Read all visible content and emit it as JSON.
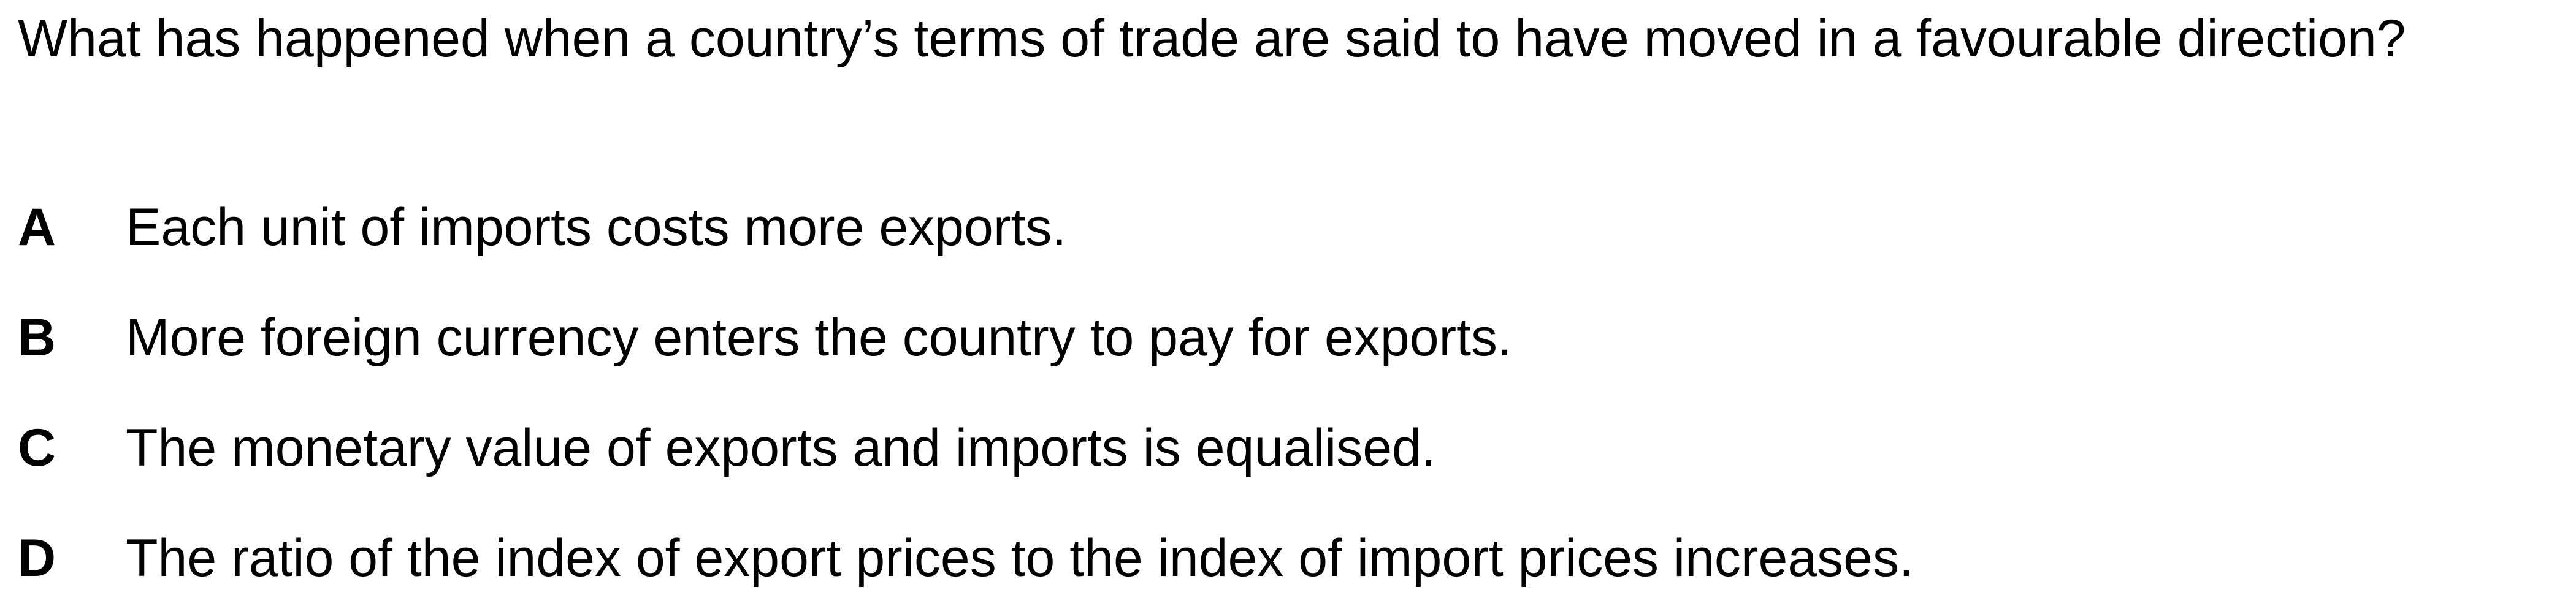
{
  "question": {
    "text": "What has happened when a country’s terms of trade are said to have moved in a favourable direction?"
  },
  "options": [
    {
      "letter": "A",
      "text": "Each unit of imports costs more exports."
    },
    {
      "letter": "B",
      "text": "More foreign currency enters the country to pay for exports."
    },
    {
      "letter": "C",
      "text": "The monetary value of exports and imports is equalised."
    },
    {
      "letter": "D",
      "text": "The ratio of the index of export prices to the index of import prices increases."
    }
  ]
}
